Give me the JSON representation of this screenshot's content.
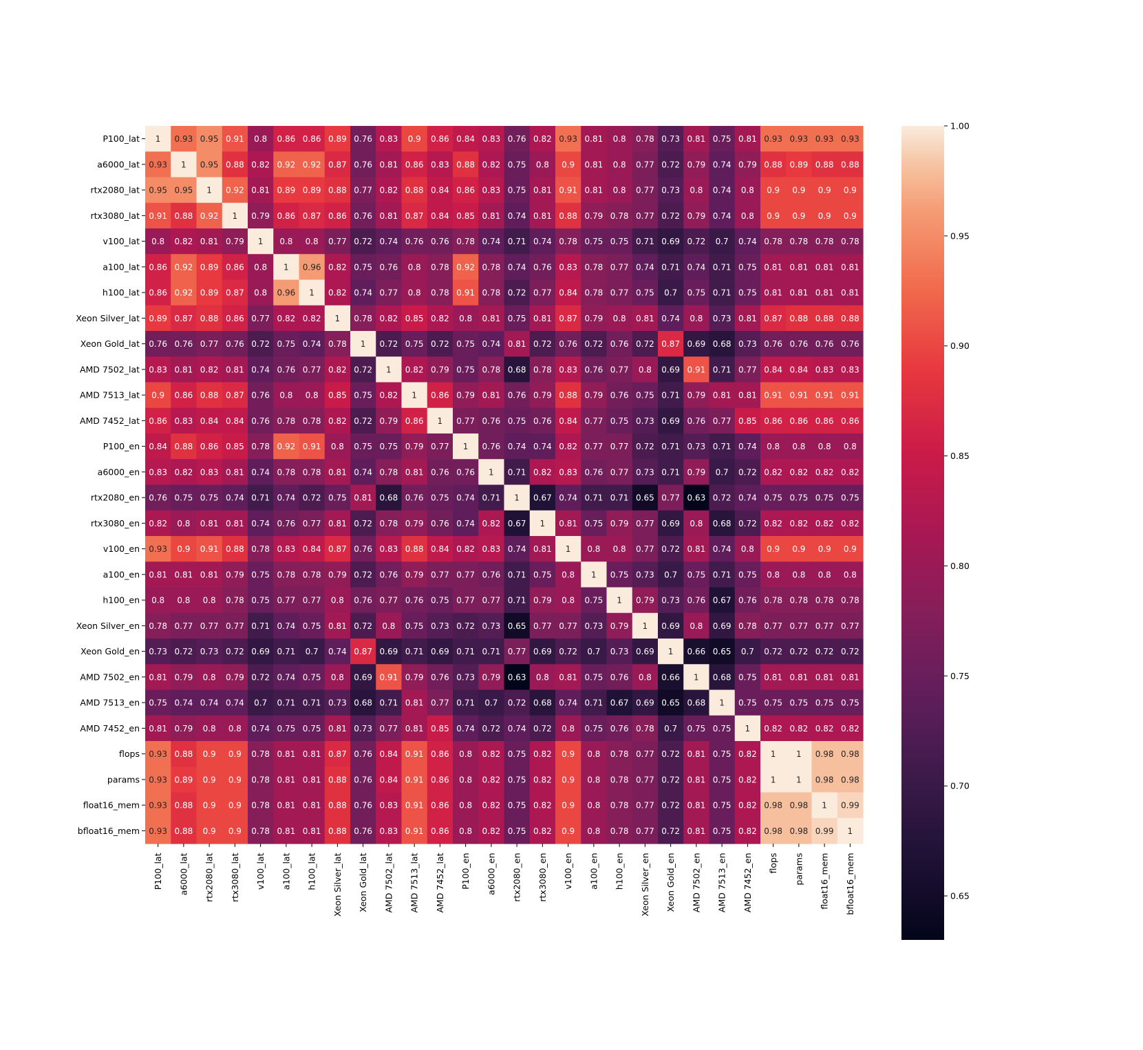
{
  "chart_data": {
    "type": "heatmap",
    "title": "",
    "xlabel": "",
    "ylabel": "",
    "labels": [
      "P100_lat",
      "a6000_lat",
      "rtx2080_lat",
      "rtx3080_lat",
      "v100_lat",
      "a100_lat",
      "h100_lat",
      "Xeon Silver_lat",
      "Xeon Gold_lat",
      "AMD 7502_lat",
      "AMD 7513_lat",
      "AMD 7452_lat",
      "P100_en",
      "a6000_en",
      "rtx2080_en",
      "rtx3080_en",
      "v100_en",
      "a100_en",
      "h100_en",
      "Xeon Silver_en",
      "Xeon Gold_en",
      "AMD 7502_en",
      "AMD 7513_en",
      "AMD 7452_en",
      "flops",
      "params",
      "float16_mem",
      "bfloat16_mem"
    ],
    "matrix": [
      [
        1,
        0.93,
        0.95,
        0.91,
        0.8,
        0.86,
        0.86,
        0.89,
        0.76,
        0.83,
        0.9,
        0.86,
        0.84,
        0.83,
        0.76,
        0.82,
        0.93,
        0.81,
        0.8,
        0.78,
        0.73,
        0.81,
        0.75,
        0.81,
        0.93,
        0.93,
        0.93,
        0.93
      ],
      [
        0.93,
        1,
        0.95,
        0.88,
        0.82,
        0.92,
        0.92,
        0.87,
        0.76,
        0.81,
        0.86,
        0.83,
        0.88,
        0.82,
        0.75,
        0.8,
        0.9,
        0.81,
        0.8,
        0.77,
        0.72,
        0.79,
        0.74,
        0.79,
        0.88,
        0.89,
        0.88,
        0.88
      ],
      [
        0.95,
        0.95,
        1,
        0.92,
        0.81,
        0.89,
        0.89,
        0.88,
        0.77,
        0.82,
        0.88,
        0.84,
        0.86,
        0.83,
        0.75,
        0.81,
        0.91,
        0.81,
        0.8,
        0.77,
        0.73,
        0.8,
        0.74,
        0.8,
        0.9,
        0.9,
        0.9,
        0.9
      ],
      [
        0.91,
        0.88,
        0.92,
        1,
        0.79,
        0.86,
        0.87,
        0.86,
        0.76,
        0.81,
        0.87,
        0.84,
        0.85,
        0.81,
        0.74,
        0.81,
        0.88,
        0.79,
        0.78,
        0.77,
        0.72,
        0.79,
        0.74,
        0.8,
        0.9,
        0.9,
        0.9,
        0.9
      ],
      [
        0.8,
        0.82,
        0.81,
        0.79,
        1,
        0.8,
        0.8,
        0.77,
        0.72,
        0.74,
        0.76,
        0.76,
        0.78,
        0.74,
        0.71,
        0.74,
        0.78,
        0.75,
        0.75,
        0.71,
        0.69,
        0.72,
        0.7,
        0.74,
        0.78,
        0.78,
        0.78,
        0.78
      ],
      [
        0.86,
        0.92,
        0.89,
        0.86,
        0.8,
        1,
        0.96,
        0.82,
        0.75,
        0.76,
        0.8,
        0.78,
        0.92,
        0.78,
        0.74,
        0.76,
        0.83,
        0.78,
        0.77,
        0.74,
        0.71,
        0.74,
        0.71,
        0.75,
        0.81,
        0.81,
        0.81,
        0.81
      ],
      [
        0.86,
        0.92,
        0.89,
        0.87,
        0.8,
        0.96,
        1,
        0.82,
        0.74,
        0.77,
        0.8,
        0.78,
        0.91,
        0.78,
        0.72,
        0.77,
        0.84,
        0.78,
        0.77,
        0.75,
        0.7,
        0.75,
        0.71,
        0.75,
        0.81,
        0.81,
        0.81,
        0.81
      ],
      [
        0.89,
        0.87,
        0.88,
        0.86,
        0.77,
        0.82,
        0.82,
        1,
        0.78,
        0.82,
        0.85,
        0.82,
        0.8,
        0.81,
        0.75,
        0.81,
        0.87,
        0.79,
        0.8,
        0.81,
        0.74,
        0.8,
        0.73,
        0.81,
        0.87,
        0.88,
        0.88,
        0.88
      ],
      [
        0.76,
        0.76,
        0.77,
        0.76,
        0.72,
        0.75,
        0.74,
        0.78,
        1,
        0.72,
        0.75,
        0.72,
        0.75,
        0.74,
        0.81,
        0.72,
        0.76,
        0.72,
        0.76,
        0.72,
        0.87,
        0.69,
        0.68,
        0.73,
        0.76,
        0.76,
        0.76,
        0.76
      ],
      [
        0.83,
        0.81,
        0.82,
        0.81,
        0.74,
        0.76,
        0.77,
        0.82,
        0.72,
        1,
        0.82,
        0.79,
        0.75,
        0.78,
        0.68,
        0.78,
        0.83,
        0.76,
        0.77,
        0.8,
        0.69,
        0.91,
        0.71,
        0.77,
        0.84,
        0.84,
        0.83,
        0.83
      ],
      [
        0.9,
        0.86,
        0.88,
        0.87,
        0.76,
        0.8,
        0.8,
        0.85,
        0.75,
        0.82,
        1,
        0.86,
        0.79,
        0.81,
        0.76,
        0.79,
        0.88,
        0.79,
        0.76,
        0.75,
        0.71,
        0.79,
        0.81,
        0.81,
        0.91,
        0.91,
        0.91,
        0.91
      ],
      [
        0.86,
        0.83,
        0.84,
        0.84,
        0.76,
        0.78,
        0.78,
        0.82,
        0.72,
        0.79,
        0.86,
        1,
        0.77,
        0.76,
        0.75,
        0.76,
        0.84,
        0.77,
        0.75,
        0.73,
        0.69,
        0.76,
        0.77,
        0.85,
        0.86,
        0.86,
        0.86,
        0.86
      ],
      [
        0.84,
        0.88,
        0.86,
        0.85,
        0.78,
        0.92,
        0.91,
        0.8,
        0.75,
        0.75,
        0.79,
        0.77,
        1,
        0.76,
        0.74,
        0.74,
        0.82,
        0.77,
        0.77,
        0.72,
        0.71,
        0.73,
        0.71,
        0.74,
        0.8,
        0.8,
        0.8,
        0.8
      ],
      [
        0.83,
        0.82,
        0.83,
        0.81,
        0.74,
        0.78,
        0.78,
        0.81,
        0.74,
        0.78,
        0.81,
        0.76,
        0.76,
        1,
        0.71,
        0.82,
        0.83,
        0.76,
        0.77,
        0.73,
        0.71,
        0.79,
        0.7,
        0.72,
        0.82,
        0.82,
        0.82,
        0.82
      ],
      [
        0.76,
        0.75,
        0.75,
        0.74,
        0.71,
        0.74,
        0.72,
        0.75,
        0.81,
        0.68,
        0.76,
        0.75,
        0.74,
        0.71,
        1,
        0.67,
        0.74,
        0.71,
        0.71,
        0.65,
        0.77,
        0.63,
        0.72,
        0.74,
        0.75,
        0.75,
        0.75,
        0.75
      ],
      [
        0.82,
        0.8,
        0.81,
        0.81,
        0.74,
        0.76,
        0.77,
        0.81,
        0.72,
        0.78,
        0.79,
        0.76,
        0.74,
        0.82,
        0.67,
        1,
        0.81,
        0.75,
        0.79,
        0.77,
        0.69,
        0.8,
        0.68,
        0.72,
        0.82,
        0.82,
        0.82,
        0.82
      ],
      [
        0.93,
        0.9,
        0.91,
        0.88,
        0.78,
        0.83,
        0.84,
        0.87,
        0.76,
        0.83,
        0.88,
        0.84,
        0.82,
        0.83,
        0.74,
        0.81,
        1,
        0.8,
        0.8,
        0.77,
        0.72,
        0.81,
        0.74,
        0.8,
        0.9,
        0.9,
        0.9,
        0.9
      ],
      [
        0.81,
        0.81,
        0.81,
        0.79,
        0.75,
        0.78,
        0.78,
        0.79,
        0.72,
        0.76,
        0.79,
        0.77,
        0.77,
        0.76,
        0.71,
        0.75,
        0.8,
        1,
        0.75,
        0.73,
        0.7,
        0.75,
        0.71,
        0.75,
        0.8,
        0.8,
        0.8,
        0.8
      ],
      [
        0.8,
        0.8,
        0.8,
        0.78,
        0.75,
        0.77,
        0.77,
        0.8,
        0.76,
        0.77,
        0.76,
        0.75,
        0.77,
        0.77,
        0.71,
        0.79,
        0.8,
        0.75,
        1,
        0.79,
        0.73,
        0.76,
        0.67,
        0.76,
        0.78,
        0.78,
        0.78,
        0.78
      ],
      [
        0.78,
        0.77,
        0.77,
        0.77,
        0.71,
        0.74,
        0.75,
        0.81,
        0.72,
        0.8,
        0.75,
        0.73,
        0.72,
        0.73,
        0.65,
        0.77,
        0.77,
        0.73,
        0.79,
        1,
        0.69,
        0.8,
        0.69,
        0.78,
        0.77,
        0.77,
        0.77,
        0.77
      ],
      [
        0.73,
        0.72,
        0.73,
        0.72,
        0.69,
        0.71,
        0.7,
        0.74,
        0.87,
        0.69,
        0.71,
        0.69,
        0.71,
        0.71,
        0.77,
        0.69,
        0.72,
        0.7,
        0.73,
        0.69,
        1,
        0.66,
        0.65,
        0.7,
        0.72,
        0.72,
        0.72,
        0.72
      ],
      [
        0.81,
        0.79,
        0.8,
        0.79,
        0.72,
        0.74,
        0.75,
        0.8,
        0.69,
        0.91,
        0.79,
        0.76,
        0.73,
        0.79,
        0.63,
        0.8,
        0.81,
        0.75,
        0.76,
        0.8,
        0.66,
        1,
        0.68,
        0.75,
        0.81,
        0.81,
        0.81,
        0.81
      ],
      [
        0.75,
        0.74,
        0.74,
        0.74,
        0.7,
        0.71,
        0.71,
        0.73,
        0.68,
        0.71,
        0.81,
        0.77,
        0.71,
        0.7,
        0.72,
        0.68,
        0.74,
        0.71,
        0.67,
        0.69,
        0.65,
        0.68,
        1,
        0.75,
        0.75,
        0.75,
        0.75,
        0.75
      ],
      [
        0.81,
        0.79,
        0.8,
        0.8,
        0.74,
        0.75,
        0.75,
        0.81,
        0.73,
        0.77,
        0.81,
        0.85,
        0.74,
        0.72,
        0.74,
        0.72,
        0.8,
        0.75,
        0.76,
        0.78,
        0.7,
        0.75,
        0.75,
        1,
        0.82,
        0.82,
        0.82,
        0.82
      ],
      [
        0.93,
        0.88,
        0.9,
        0.9,
        0.78,
        0.81,
        0.81,
        0.87,
        0.76,
        0.84,
        0.91,
        0.86,
        0.8,
        0.82,
        0.75,
        0.82,
        0.9,
        0.8,
        0.78,
        0.77,
        0.72,
        0.81,
        0.75,
        0.82,
        1,
        1,
        0.98,
        0.98
      ],
      [
        0.93,
        0.89,
        0.9,
        0.9,
        0.78,
        0.81,
        0.81,
        0.88,
        0.76,
        0.84,
        0.91,
        0.86,
        0.8,
        0.82,
        0.75,
        0.82,
        0.9,
        0.8,
        0.78,
        0.77,
        0.72,
        0.81,
        0.75,
        0.82,
        1,
        1,
        0.98,
        0.98
      ],
      [
        0.93,
        0.88,
        0.9,
        0.9,
        0.78,
        0.81,
        0.81,
        0.88,
        0.76,
        0.83,
        0.91,
        0.86,
        0.8,
        0.82,
        0.75,
        0.82,
        0.9,
        0.8,
        0.78,
        0.77,
        0.72,
        0.81,
        0.75,
        0.82,
        0.98,
        0.98,
        1,
        0.99
      ],
      [
        0.93,
        0.88,
        0.9,
        0.9,
        0.78,
        0.81,
        0.81,
        0.88,
        0.76,
        0.83,
        0.91,
        0.86,
        0.8,
        0.82,
        0.75,
        0.82,
        0.9,
        0.8,
        0.78,
        0.77,
        0.72,
        0.81,
        0.75,
        0.82,
        0.98,
        0.98,
        0.99,
        1
      ]
    ],
    "value_range": [
      0.63,
      1.0
    ],
    "colormap": "rocket",
    "colorbar": {
      "ticks": [
        "1.00",
        "0.95",
        "0.90",
        "0.85",
        "0.80",
        "0.75",
        "0.70",
        "0.65"
      ],
      "placement": "right"
    },
    "annotated": true,
    "grid": false
  }
}
